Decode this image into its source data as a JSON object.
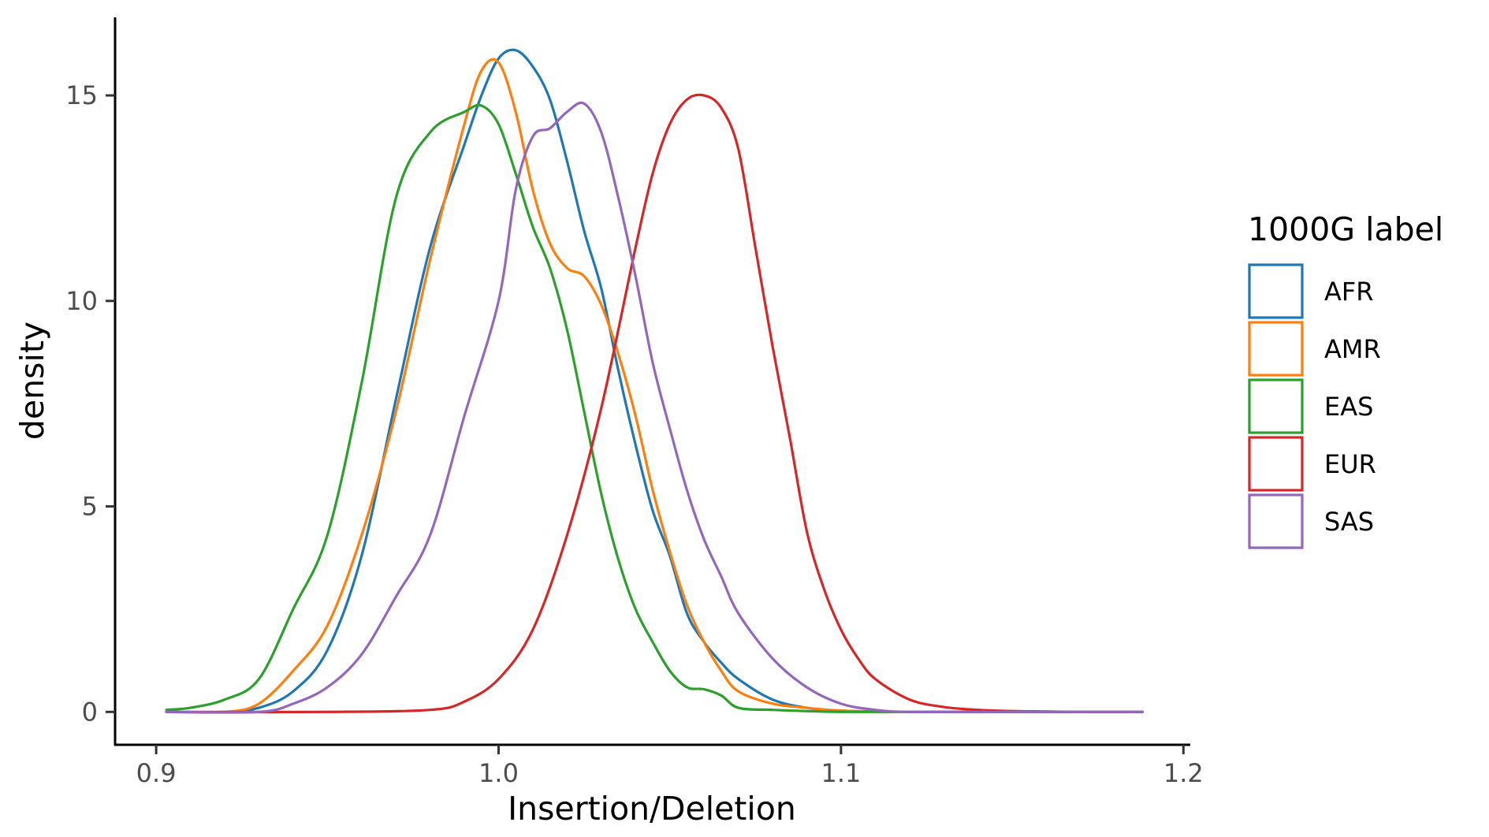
{
  "chart_data": {
    "type": "line",
    "xlabel": "Insertion/Deletion",
    "ylabel": "density",
    "xlim": [
      0.888,
      1.202
    ],
    "ylim": [
      -0.8,
      16.9
    ],
    "x_ticks": [
      0.9,
      1.0,
      1.1,
      1.2
    ],
    "x_tick_labels": [
      "0.9",
      "1.0",
      "1.1",
      "1.2"
    ],
    "y_ticks": [
      0,
      5,
      10,
      15
    ],
    "y_tick_labels": [
      "0",
      "5",
      "10",
      "15"
    ],
    "grid": false,
    "legend": {
      "title": "1000G label",
      "position": "right"
    },
    "series": [
      {
        "name": "AFR",
        "color": "#1f77b4",
        "x": [
          0.903,
          0.92,
          0.93,
          0.94,
          0.95,
          0.96,
          0.97,
          0.98,
          0.99,
          0.995,
          1.0,
          1.005,
          1.01,
          1.015,
          1.02,
          1.025,
          1.03,
          1.035,
          1.04,
          1.045,
          1.05,
          1.055,
          1.06,
          1.065,
          1.07,
          1.08,
          1.09,
          1.1,
          1.12,
          1.15,
          1.188
        ],
        "y": [
          0,
          0,
          0.1,
          0.5,
          1.5,
          3.8,
          7.6,
          11.3,
          13.8,
          15.0,
          15.9,
          16.1,
          15.7,
          14.9,
          13.4,
          11.7,
          10.3,
          8.3,
          6.5,
          4.9,
          3.8,
          2.4,
          1.7,
          1.2,
          0.8,
          0.3,
          0.1,
          0.03,
          0,
          0,
          0
        ]
      },
      {
        "name": "AMR",
        "color": "#ff7f0e",
        "x": [
          0.903,
          0.92,
          0.93,
          0.94,
          0.95,
          0.96,
          0.97,
          0.98,
          0.99,
          0.995,
          1.0,
          1.005,
          1.01,
          1.015,
          1.02,
          1.025,
          1.03,
          1.035,
          1.04,
          1.045,
          1.05,
          1.055,
          1.06,
          1.065,
          1.07,
          1.08,
          1.09,
          1.1,
          1.12,
          1.15,
          1.188
        ],
        "y": [
          0,
          0,
          0.2,
          1.0,
          2.1,
          4.3,
          7.3,
          11.0,
          14.3,
          15.6,
          15.8,
          14.6,
          12.7,
          11.4,
          10.8,
          10.6,
          9.9,
          8.7,
          7.2,
          5.4,
          3.9,
          2.6,
          1.7,
          1.0,
          0.5,
          0.2,
          0.1,
          0.03,
          0,
          0,
          0
        ]
      },
      {
        "name": "EAS",
        "color": "#2ca02c",
        "x": [
          0.903,
          0.91,
          0.92,
          0.93,
          0.94,
          0.95,
          0.96,
          0.97,
          0.98,
          0.99,
          0.995,
          1.0,
          1.005,
          1.01,
          1.015,
          1.02,
          1.025,
          1.03,
          1.035,
          1.04,
          1.045,
          1.05,
          1.055,
          1.06,
          1.065,
          1.07,
          1.08,
          1.09,
          1.1,
          1.12,
          1.15,
          1.188
        ],
        "y": [
          0.05,
          0.1,
          0.3,
          0.8,
          2.5,
          4.3,
          8.0,
          12.5,
          14.1,
          14.6,
          14.75,
          14.3,
          13.1,
          11.8,
          10.8,
          9.3,
          7.3,
          5.3,
          3.7,
          2.5,
          1.7,
          1.0,
          0.6,
          0.55,
          0.4,
          0.1,
          0.05,
          0.02,
          0,
          0,
          0,
          0
        ]
      },
      {
        "name": "EUR",
        "color": "#d62728",
        "x": [
          0.903,
          0.95,
          0.98,
          0.99,
          1.0,
          1.01,
          1.02,
          1.03,
          1.04,
          1.045,
          1.05,
          1.055,
          1.06,
          1.065,
          1.07,
          1.075,
          1.08,
          1.085,
          1.09,
          1.095,
          1.1,
          1.105,
          1.11,
          1.12,
          1.13,
          1.14,
          1.15,
          1.16,
          1.17,
          1.188
        ],
        "y": [
          0,
          0,
          0.05,
          0.25,
          0.8,
          2.0,
          4.3,
          7.4,
          11.3,
          13.1,
          14.3,
          14.9,
          15.0,
          14.7,
          13.7,
          11.3,
          8.9,
          6.7,
          4.4,
          3.0,
          2.0,
          1.3,
          0.8,
          0.3,
          0.12,
          0.05,
          0.02,
          0.01,
          0,
          0
        ]
      },
      {
        "name": "SAS",
        "color": "#9467bd",
        "x": [
          0.903,
          0.93,
          0.94,
          0.95,
          0.96,
          0.97,
          0.98,
          0.99,
          1.0,
          1.005,
          1.01,
          1.015,
          1.02,
          1.025,
          1.03,
          1.035,
          1.04,
          1.045,
          1.05,
          1.055,
          1.06,
          1.065,
          1.07,
          1.08,
          1.09,
          1.1,
          1.11,
          1.12,
          1.15,
          1.188
        ],
        "y": [
          0,
          0,
          0.2,
          0.6,
          1.4,
          2.8,
          4.3,
          7.2,
          10.0,
          12.7,
          14.0,
          14.2,
          14.6,
          14.8,
          14.1,
          12.5,
          10.6,
          8.5,
          6.9,
          5.4,
          4.2,
          3.3,
          2.4,
          1.3,
          0.6,
          0.2,
          0.05,
          0,
          0,
          0
        ]
      }
    ]
  }
}
